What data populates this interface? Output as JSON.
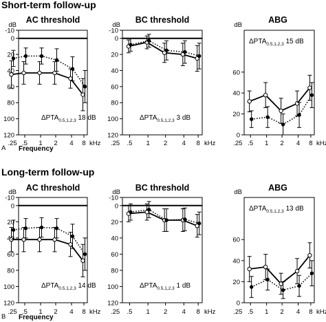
{
  "chart_data": {
    "type": "line",
    "sections": [
      {
        "title": "Short-term follow-up",
        "panel_letter": "A",
        "xlabel": "Frequency",
        "panels": [
          {
            "title": "AC threshold",
            "y_unit": "dB",
            "x_unit": "kHz",
            "x_categories": [
              ".25",
              ".5",
              "1",
              "2",
              "4",
              "8"
            ],
            "y_ticks": [
              -10,
              0,
              20,
              40,
              60,
              80,
              100,
              120
            ],
            "ylim": [
              -10,
              120
            ],
            "y_inverted": true,
            "zero_line": true,
            "annotation": {
              "prefix": "ΔPTA",
              "sub": "0.5,1,2,3",
              "value": "18 dB"
            },
            "series": [
              {
                "style": "open-solid",
                "x": [
                  0.25,
                  0.5,
                  1,
                  2,
                  4,
                  8
                ],
                "values": [
                  45,
                  43,
                  43,
                  43,
                  50,
                  70
                ],
                "err": [
                  17,
                  14,
                  14,
                  14,
                  12,
                  20
                ]
              },
              {
                "style": "filled-dotted",
                "x": [
                  0.25,
                  0.5,
                  1,
                  2,
                  4,
                  8
                ],
                "values": [
                  25,
                  22,
                  22,
                  27,
                  38,
                  60
                ],
                "err": [
                  10,
                  10,
                  10,
                  14,
                  15,
                  20
                ]
              }
            ]
          },
          {
            "title": "BC threshold",
            "y_unit": "dB",
            "x_unit": "kHz",
            "x_categories": [
              ".25",
              ".5",
              "1",
              "2",
              "4",
              "8"
            ],
            "y_ticks": [
              -10,
              0,
              20,
              40,
              60,
              80,
              100,
              120
            ],
            "ylim": [
              -10,
              120
            ],
            "y_inverted": true,
            "zero_line": true,
            "annotation": {
              "prefix": "ΔPTA",
              "sub": "0.5,1,2,3",
              "value": "3 dB"
            },
            "series": [
              {
                "style": "open-solid",
                "x": [
                  0.5,
                  1,
                  2,
                  4,
                  8
                ],
                "values": [
                  10,
                  5,
                  18,
                  20,
                  25
                ],
                "err": [
                  8,
                  8,
                  12,
                  14,
                  16
                ]
              },
              {
                "style": "filled-dotted",
                "x": [
                  0.5,
                  1,
                  2,
                  4,
                  8
                ],
                "values": [
                  8,
                  3,
                  15,
                  17,
                  22
                ],
                "err": [
                  8,
                  8,
                  12,
                  14,
                  16
                ]
              }
            ]
          },
          {
            "title": "ABG",
            "y_unit": "dB",
            "x_unit": "kHz",
            "x_categories": [
              ".25",
              ".5",
              "1",
              "2",
              "4",
              "8"
            ],
            "y_ticks": [
              0,
              20,
              40,
              60
            ],
            "ylim": [
              0,
              100
            ],
            "y_inverted": false,
            "zero_line": false,
            "annotation": {
              "prefix": "ΔPTA",
              "sub": "0.5,1,2,3",
              "value": "15 dB"
            },
            "series": [
              {
                "style": "open-solid",
                "x": [
                  0.5,
                  1,
                  2,
                  4,
                  8
                ],
                "values": [
                  32,
                  38,
                  23,
                  30,
                  45
                ],
                "err": [
                  10,
                  12,
                  12,
                  12,
                  12
                ]
              },
              {
                "style": "filled-dotted",
                "x": [
                  0.5,
                  1,
                  2,
                  4,
                  8
                ],
                "values": [
                  15,
                  17,
                  10,
                  19,
                  38
                ],
                "err": [
                  8,
                  10,
                  10,
                  12,
                  12
                ]
              }
            ]
          }
        ]
      },
      {
        "title": "Long-term follow-up",
        "panel_letter": "B",
        "xlabel": "Frequency",
        "panels": [
          {
            "title": "AC threshold",
            "y_unit": "dB",
            "x_unit": "kHz",
            "x_categories": [
              ".25",
              ".5",
              "1",
              "2",
              "4",
              "8"
            ],
            "y_ticks": [
              -10,
              0,
              20,
              40,
              60,
              80,
              100,
              120
            ],
            "ylim": [
              -10,
              120
            ],
            "y_inverted": true,
            "zero_line": true,
            "annotation": {
              "prefix": "ΔPTA",
              "sub": "0.5,1,2,3",
              "value": "14 dB"
            },
            "series": [
              {
                "style": "open-solid",
                "x": [
                  0.25,
                  0.5,
                  1,
                  2,
                  4,
                  8
                ],
                "values": [
                  42,
                  42,
                  42,
                  42,
                  48,
                  68
                ],
                "err": [
                  15,
                  15,
                  15,
                  15,
                  15,
                  20
                ]
              },
              {
                "style": "filled-dotted",
                "x": [
                  0.25,
                  0.5,
                  1,
                  2,
                  4,
                  8
                ],
                "values": [
                  30,
                  28,
                  27,
                  28,
                  38,
                  60
                ],
                "err": [
                  12,
                  12,
                  12,
                  12,
                  15,
                  20
                ]
              }
            ]
          },
          {
            "title": "BC threshold",
            "y_unit": "dB",
            "x_unit": "kHz",
            "x_categories": [
              ".25",
              ".5",
              "1",
              "2",
              "4",
              "8"
            ],
            "y_ticks": [
              -10,
              0,
              20,
              40,
              60,
              80,
              100,
              120
            ],
            "ylim": [
              -10,
              120
            ],
            "y_inverted": true,
            "zero_line": true,
            "annotation": {
              "prefix": "ΔPTA",
              "sub": "0.5,1,2,3",
              "value": "1 dB"
            },
            "series": [
              {
                "style": "open-solid",
                "x": [
                  0.5,
                  1,
                  2,
                  4,
                  8
                ],
                "values": [
                  10,
                  8,
                  18,
                  18,
                  25
                ],
                "err": [
                  10,
                  10,
                  14,
                  14,
                  14
                ]
              },
              {
                "style": "filled-dotted",
                "x": [
                  0.5,
                  1,
                  2,
                  4,
                  8
                ],
                "values": [
                  8,
                  5,
                  18,
                  17,
                  22
                ],
                "err": [
                  10,
                  10,
                  14,
                  14,
                  14
                ]
              }
            ]
          },
          {
            "title": "ABG",
            "y_unit": "dB",
            "x_unit": "kHz",
            "x_categories": [
              ".25",
              ".5",
              "1",
              "2",
              "4",
              "8"
            ],
            "y_ticks": [
              0,
              20,
              40,
              60
            ],
            "ylim": [
              0,
              100
            ],
            "y_inverted": false,
            "zero_line": false,
            "annotation": {
              "prefix": "ΔPTA",
              "sub": "0.5,1,2,3",
              "value": "13 dB"
            },
            "series": [
              {
                "style": "open-solid",
                "x": [
                  0.5,
                  1,
                  2,
                  4,
                  8
                ],
                "values": [
                  32,
                  34,
                  18,
                  30,
                  45
                ],
                "err": [
                  12,
                  12,
                  10,
                  12,
                  12
                ]
              },
              {
                "style": "filled-dotted",
                "x": [
                  0.5,
                  1,
                  2,
                  4,
                  8
                ],
                "values": [
                  15,
                  22,
                  12,
                  16,
                  28
                ],
                "err": [
                  10,
                  10,
                  8,
                  10,
                  12
                ]
              }
            ]
          }
        ]
      }
    ]
  }
}
